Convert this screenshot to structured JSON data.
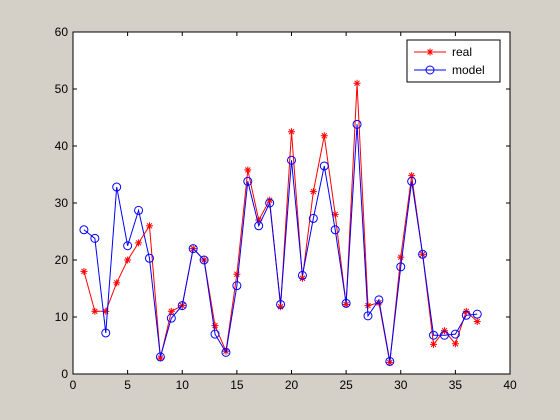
{
  "chart_data": {
    "type": "line",
    "title": "",
    "xlabel": "",
    "ylabel": "",
    "xlim": [
      0,
      40
    ],
    "ylim": [
      0,
      60
    ],
    "xticks": [
      0,
      5,
      10,
      15,
      20,
      25,
      30,
      35,
      40
    ],
    "yticks": [
      0,
      10,
      20,
      30,
      40,
      50,
      60
    ],
    "grid": false,
    "legend_position": "top-right",
    "x": [
      1,
      2,
      3,
      4,
      5,
      6,
      7,
      8,
      9,
      10,
      11,
      12,
      13,
      14,
      15,
      16,
      17,
      18,
      19,
      20,
      21,
      22,
      23,
      24,
      25,
      26,
      27,
      28,
      29,
      30,
      31,
      32,
      33,
      34,
      35,
      36,
      37
    ],
    "series": [
      {
        "name": "real",
        "color": "#ff0000",
        "marker": "*",
        "values": [
          18.0,
          11.0,
          11.0,
          16.0,
          20.0,
          23.0,
          26.0,
          2.8,
          11.0,
          12.0,
          22.0,
          20.0,
          8.5,
          4.0,
          17.5,
          35.8,
          27.0,
          30.5,
          11.8,
          42.5,
          16.8,
          32.0,
          41.8,
          28.0,
          12.2,
          51.0,
          12.0,
          12.5,
          2.0,
          20.5,
          34.8,
          21.0,
          5.2,
          7.6,
          5.3,
          11.0,
          9.2
        ]
      },
      {
        "name": "model",
        "color": "#0000ff",
        "marker": "o",
        "values": [
          25.3,
          23.8,
          7.2,
          32.8,
          22.5,
          28.7,
          20.3,
          3.0,
          9.8,
          12.0,
          22.0,
          20.0,
          7.0,
          3.8,
          15.5,
          33.8,
          26.0,
          30.0,
          12.2,
          37.5,
          17.3,
          27.3,
          36.5,
          25.3,
          12.4,
          43.8,
          10.2,
          13.0,
          2.2,
          18.8,
          33.8,
          21.0,
          6.8,
          6.8,
          7.0,
          10.3,
          10.5
        ]
      }
    ]
  }
}
